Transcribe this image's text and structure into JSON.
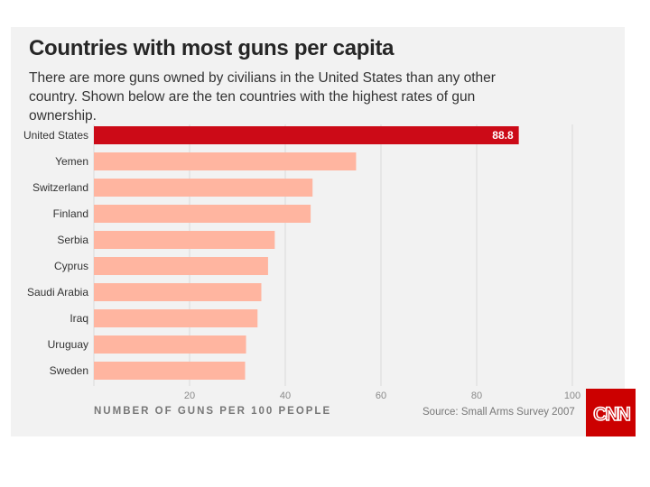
{
  "title": "Countries with most guns per capita",
  "subtitle": "There are more guns owned by civilians in the United States than any other country. Shown below are the ten countries with the highest rates of gun ownership.",
  "brand": {
    "logo_text": "CNN",
    "logo_color": "#cc0000"
  },
  "colors": {
    "highlight": "#cc0a17",
    "bar": "#ffb5a0",
    "grid": "#d9d9d9",
    "label_on_bar": "#ffffff"
  },
  "chart_data": {
    "type": "bar",
    "orientation": "horizontal",
    "title": "Countries with most guns per capita",
    "categories": [
      "United States",
      "Yemen",
      "Switzerland",
      "Finland",
      "Serbia",
      "Cyprus",
      "Saudi Arabia",
      "Iraq",
      "Uruguay",
      "Sweden"
    ],
    "values": [
      88.8,
      54.8,
      45.7,
      45.3,
      37.8,
      36.4,
      35,
      34.2,
      31.8,
      31.6
    ],
    "highlight_category": "United States",
    "data_labels": {
      "United States": "88.8"
    },
    "xlabel": "NUMBER OF GUNS PER 100 PEOPLE",
    "ylabel": "",
    "xlim": [
      0,
      100
    ],
    "xticks": [
      20,
      40,
      60,
      80,
      100
    ],
    "grid": true,
    "source": "Source: Small Arms Survey 2007"
  }
}
